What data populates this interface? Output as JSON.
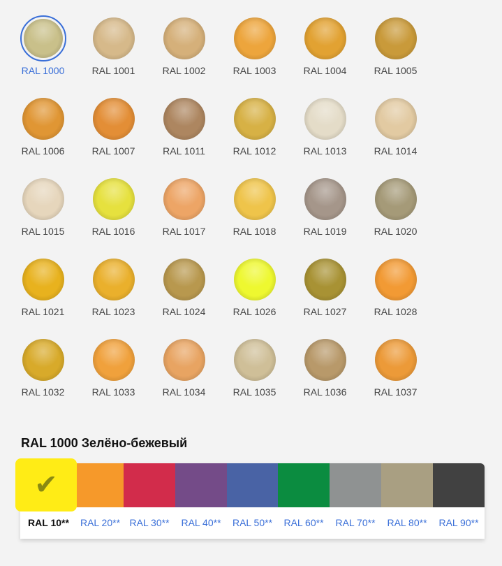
{
  "swatches": [
    {
      "label": "RAL 1000",
      "color": "#c9c08a",
      "selected": true
    },
    {
      "label": "RAL 1001",
      "color": "#d6b98a"
    },
    {
      "label": "RAL 1002",
      "color": "#d5b07a"
    },
    {
      "label": "RAL 1003",
      "color": "#eda53c"
    },
    {
      "label": "RAL 1004",
      "color": "#e2a232"
    },
    {
      "label": "RAL 1005",
      "color": "#c99a3a"
    },
    {
      "label": "RAL 1006",
      "color": "#e09634"
    },
    {
      "label": "RAL 1007",
      "color": "#e38e36"
    },
    {
      "label": "RAL 1011",
      "color": "#ad8660"
    },
    {
      "label": "RAL 1012",
      "color": "#d7b145"
    },
    {
      "label": "RAL 1013",
      "color": "#e4dcc8"
    },
    {
      "label": "RAL 1014",
      "color": "#e2caa2"
    },
    {
      "label": "RAL 1015",
      "color": "#e6d6bc"
    },
    {
      "label": "RAL 1016",
      "color": "#e6e13e"
    },
    {
      "label": "RAL 1017",
      "color": "#eda566"
    },
    {
      "label": "RAL 1018",
      "color": "#efc44a"
    },
    {
      "label": "RAL 1019",
      "color": "#a5968a"
    },
    {
      "label": "RAL 1020",
      "color": "#a59a78"
    },
    {
      "label": "RAL 1021",
      "color": "#e8b21e"
    },
    {
      "label": "RAL 1023",
      "color": "#eab02c"
    },
    {
      "label": "RAL 1024",
      "color": "#b8984e"
    },
    {
      "label": "RAL 1026",
      "color": "#eef830"
    },
    {
      "label": "RAL 1027",
      "color": "#a89234"
    },
    {
      "label": "RAL 1028",
      "color": "#f29a34"
    },
    {
      "label": "RAL 1032",
      "color": "#d8aa2a"
    },
    {
      "label": "RAL 1033",
      "color": "#f0a13c"
    },
    {
      "label": "RAL 1034",
      "color": "#e8a462"
    },
    {
      "label": "RAL 1035",
      "color": "#cfbf98"
    },
    {
      "label": "RAL 1036",
      "color": "#b8996a"
    },
    {
      "label": "RAL 1037",
      "color": "#ec9a38"
    }
  ],
  "selected_title": "RAL 1000 Зелёно-бежевый",
  "groups": [
    {
      "label": "RAL 10**",
      "color": "#ffec16",
      "active": true
    },
    {
      "label": "RAL 20**",
      "color": "#f6992a"
    },
    {
      "label": "RAL 30**",
      "color": "#d22c4b"
    },
    {
      "label": "RAL 40**",
      "color": "#744b88"
    },
    {
      "label": "RAL 50**",
      "color": "#4963a5"
    },
    {
      "label": "RAL 60**",
      "color": "#0b8c40"
    },
    {
      "label": "RAL 70**",
      "color": "#8f9292"
    },
    {
      "label": "RAL 80**",
      "color": "#a99f82"
    },
    {
      "label": "RAL 90**",
      "color": "#414141"
    }
  ],
  "check_icon": "✔"
}
